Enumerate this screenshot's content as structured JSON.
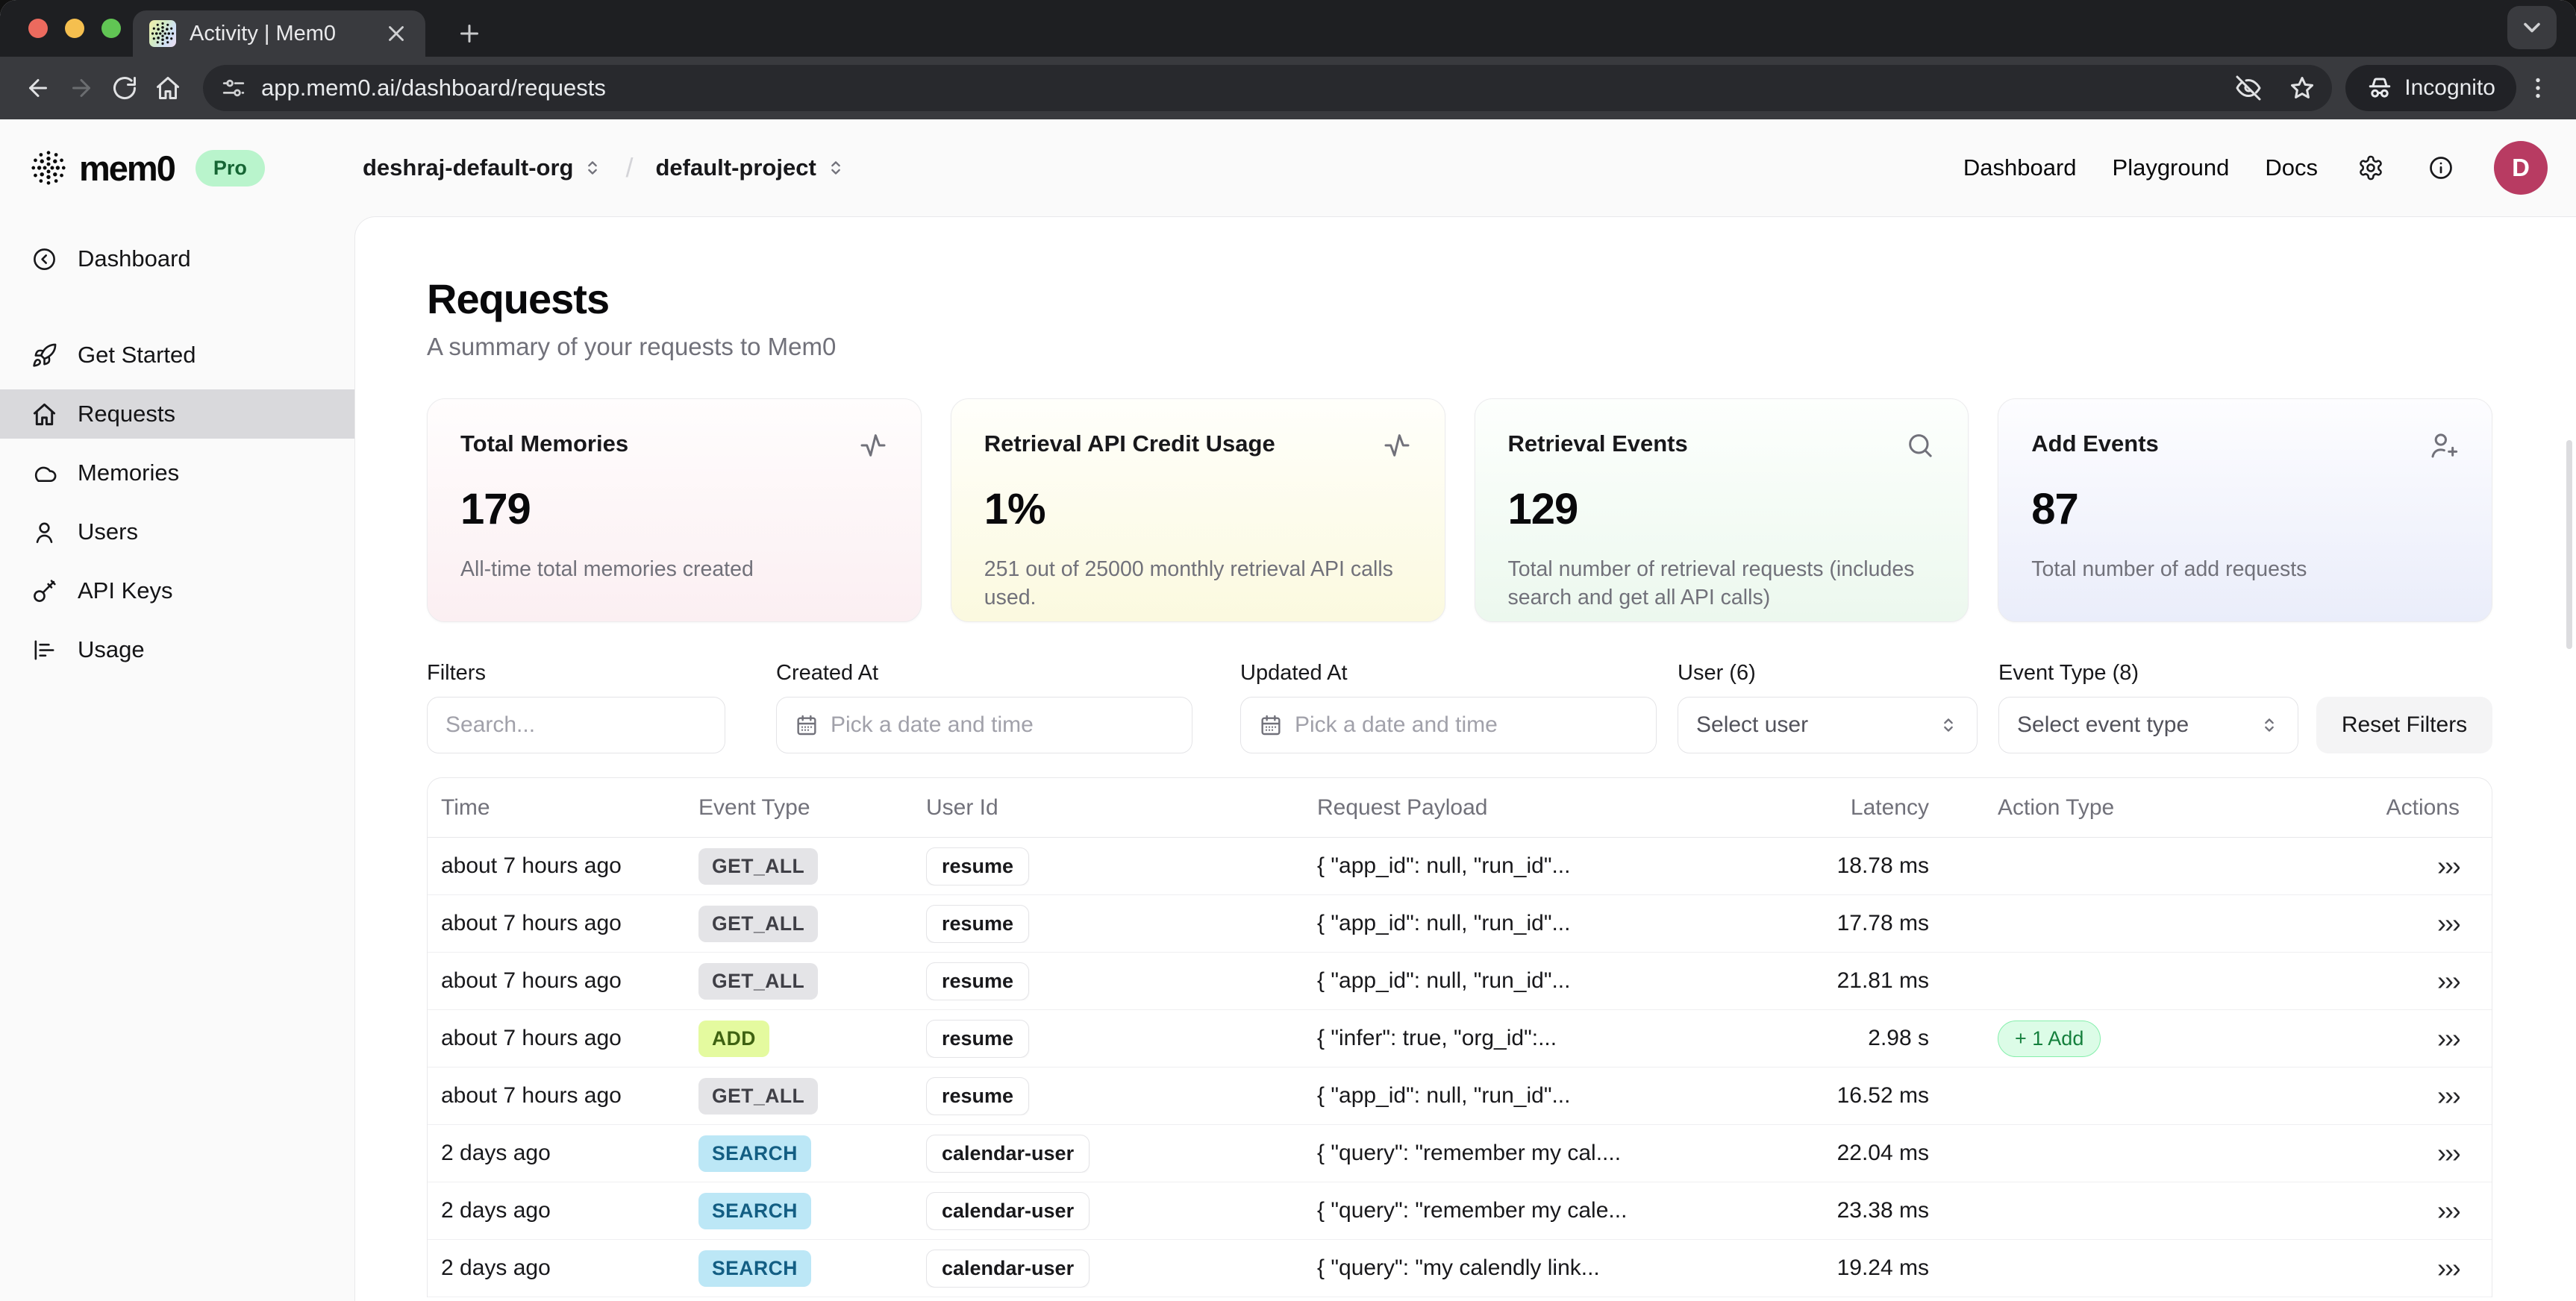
{
  "browser": {
    "tab_title": "Activity | Mem0",
    "url": "app.mem0.ai/dashboard/requests",
    "incognito_label": "Incognito"
  },
  "header": {
    "logo_text": "mem0",
    "plan_badge": "Pro",
    "org": "deshraj-default-org",
    "breadcrumb_separator": "/",
    "project": "default-project",
    "nav": [
      {
        "label": "Dashboard"
      },
      {
        "label": "Playground"
      },
      {
        "label": "Docs"
      }
    ],
    "avatar_initial": "D"
  },
  "sidebar": {
    "items": [
      {
        "label": "Dashboard",
        "icon": "circle-arrow-left",
        "active": false,
        "group": "top"
      },
      {
        "label": "Get Started",
        "icon": "rocket",
        "active": false,
        "group": "main"
      },
      {
        "label": "Requests",
        "icon": "home",
        "active": true,
        "group": "main"
      },
      {
        "label": "Memories",
        "icon": "cloud",
        "active": false,
        "group": "main"
      },
      {
        "label": "Users",
        "icon": "user",
        "active": false,
        "group": "main"
      },
      {
        "label": "API Keys",
        "icon": "key",
        "active": false,
        "group": "main"
      },
      {
        "label": "Usage",
        "icon": "chart",
        "active": false,
        "group": "main"
      }
    ]
  },
  "page": {
    "title": "Requests",
    "subtitle": "A summary of your requests to Mem0"
  },
  "cards": [
    {
      "title": "Total Memories",
      "value": "179",
      "description": "All-time total memories created",
      "icon": "activity",
      "tint": "pink"
    },
    {
      "title": "Retrieval API Credit Usage",
      "value": "1%",
      "description": "251 out of 25000 monthly retrieval API calls used.",
      "icon": "activity",
      "tint": "yellow"
    },
    {
      "title": "Retrieval Events",
      "value": "129",
      "description": "Total number of retrieval requests (includes search and get all API calls)",
      "icon": "search",
      "tint": "green"
    },
    {
      "title": "Add Events",
      "value": "87",
      "description": "Total number of add requests",
      "icon": "user-plus",
      "tint": "blue"
    }
  ],
  "filters": {
    "search_label": "Filters",
    "search_placeholder": "Search...",
    "created_label": "Created At",
    "created_placeholder": "Pick a date and time",
    "updated_label": "Updated At",
    "updated_placeholder": "Pick a date and time",
    "user_label": "User (6)",
    "user_placeholder": "Select user",
    "event_label": "Event Type (8)",
    "event_placeholder": "Select event type",
    "reset_button": "Reset Filters"
  },
  "table": {
    "columns": [
      "Time",
      "Event Type",
      "User Id",
      "Request Payload",
      "Latency",
      "Action Type",
      "Actions"
    ],
    "actions_glyph": "›››",
    "rows": [
      {
        "time": "about 7 hours ago",
        "event_type": "GET_ALL",
        "user_id": "resume",
        "payload": "{ \"app_id\": null, \"run_id\"...",
        "latency": "18.78 ms",
        "action_type": ""
      },
      {
        "time": "about 7 hours ago",
        "event_type": "GET_ALL",
        "user_id": "resume",
        "payload": "{ \"app_id\": null, \"run_id\"...",
        "latency": "17.78 ms",
        "action_type": ""
      },
      {
        "time": "about 7 hours ago",
        "event_type": "GET_ALL",
        "user_id": "resume",
        "payload": "{ \"app_id\": null, \"run_id\"...",
        "latency": "21.81 ms",
        "action_type": ""
      },
      {
        "time": "about 7 hours ago",
        "event_type": "ADD",
        "user_id": "resume",
        "payload": "{ \"infer\": true, \"org_id\":...",
        "latency": "2.98 s",
        "action_type": "+ 1 Add"
      },
      {
        "time": "about 7 hours ago",
        "event_type": "GET_ALL",
        "user_id": "resume",
        "payload": "{ \"app_id\": null, \"run_id\"...",
        "latency": "16.52 ms",
        "action_type": ""
      },
      {
        "time": "2 days ago",
        "event_type": "SEARCH",
        "user_id": "calendar-user",
        "payload": "{ \"query\": \"remember my cal....",
        "latency": "22.04 ms",
        "action_type": ""
      },
      {
        "time": "2 days ago",
        "event_type": "SEARCH",
        "user_id": "calendar-user",
        "payload": "{ \"query\": \"remember my cale...",
        "latency": "23.38 ms",
        "action_type": ""
      },
      {
        "time": "2 days ago",
        "event_type": "SEARCH",
        "user_id": "calendar-user",
        "payload": "{ \"query\": \"my calendly link...",
        "latency": "19.24 ms",
        "action_type": ""
      }
    ]
  },
  "colors": {
    "badge_get_all_bg": "#e4e4e7",
    "badge_add_bg": "#e4fa9f",
    "badge_search_bg": "#bce7f6",
    "action_pill_green": "#dcfce7",
    "pro_badge_green": "#b9f4cc",
    "avatar_crimson": "#b83b62",
    "sidebar_active_bg": "#d9d9dc",
    "traffic_red": "#ec6a5e",
    "traffic_yellow": "#f5bf4f",
    "traffic_green": "#61c554"
  }
}
